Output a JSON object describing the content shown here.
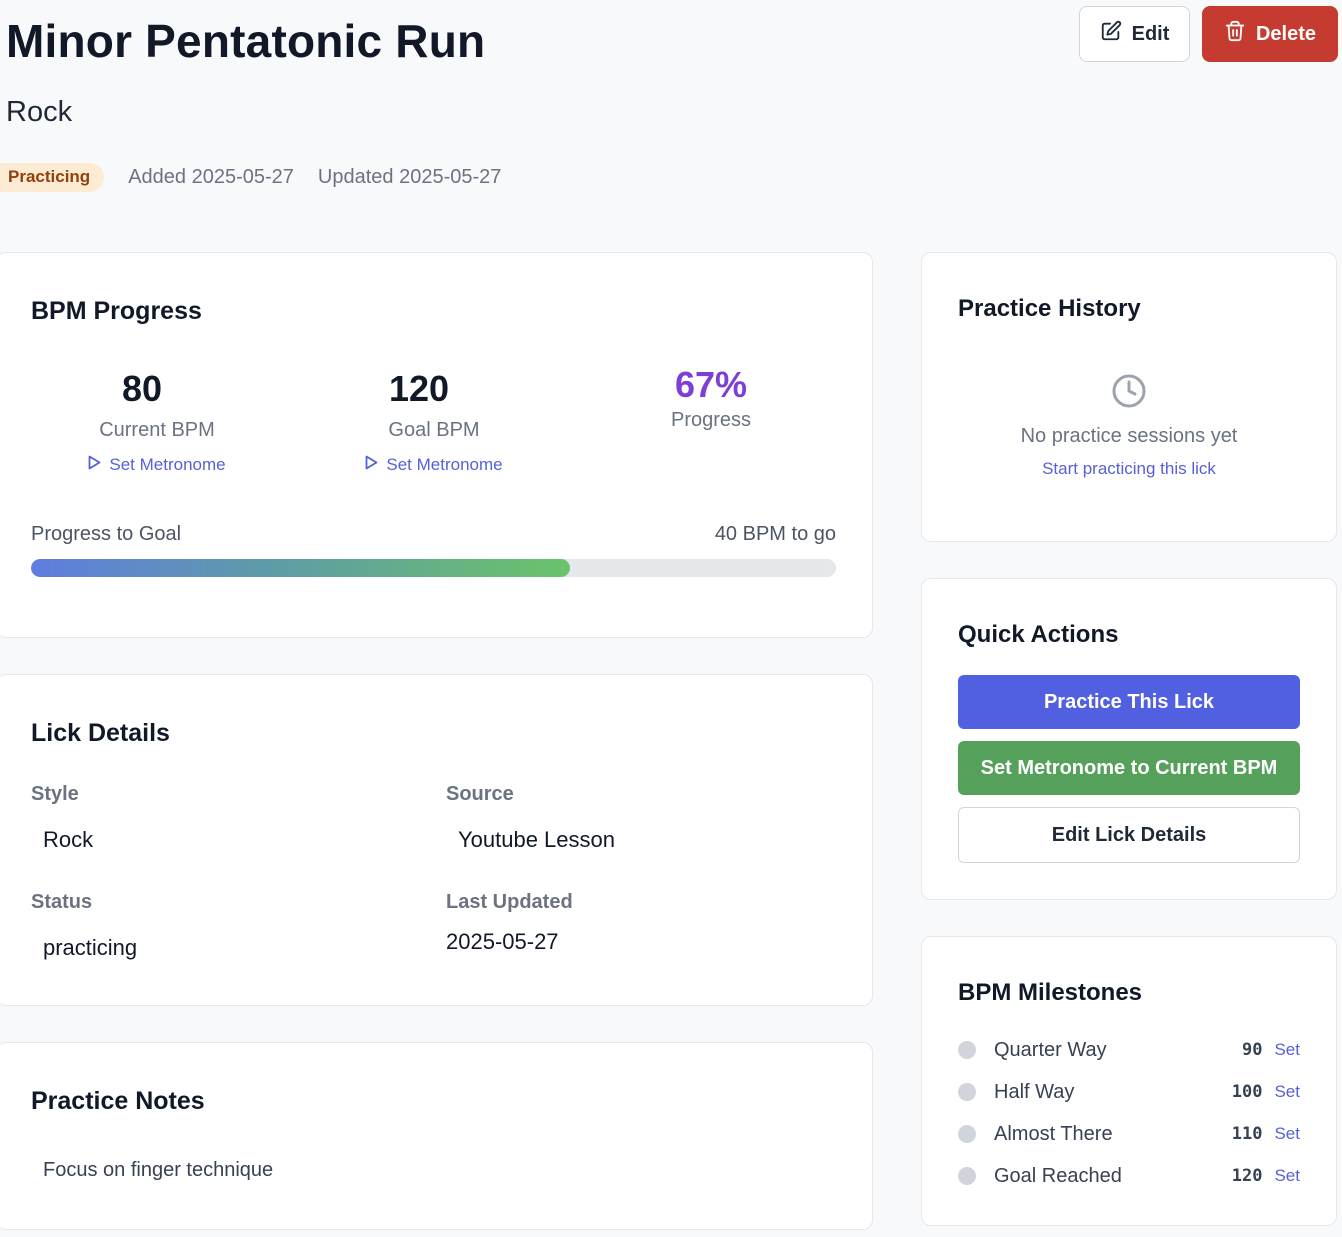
{
  "header": {
    "title": "Minor Pentatonic Run",
    "subtitle": "Rock",
    "status_badge": "Practicing",
    "added": "Added 2025-05-27",
    "updated": "Updated 2025-05-27",
    "edit_label": "Edit",
    "delete_label": "Delete"
  },
  "bpm_progress": {
    "title": "BPM Progress",
    "current_bpm": "80",
    "current_label": "Current BPM",
    "goal_bpm": "120",
    "goal_label": "Goal BPM",
    "set_metronome_label": "Set Metronome",
    "progress_pct": "67%",
    "progress_label": "Progress",
    "progress_to_goal_label": "Progress to Goal",
    "remaining": "40 BPM to go",
    "progress_fraction": 0.67
  },
  "lick_details": {
    "title": "Lick Details",
    "style_label": "Style",
    "style_value": "Rock",
    "source_label": "Source",
    "source_value": "Youtube Lesson",
    "status_label": "Status",
    "status_value": "practicing",
    "last_updated_label": "Last Updated",
    "last_updated_value": "2025-05-27"
  },
  "practice_notes": {
    "title": "Practice Notes",
    "text": "Focus on finger technique"
  },
  "practice_history": {
    "title": "Practice History",
    "empty_text": "No practice sessions yet",
    "empty_link": "Start practicing this lick"
  },
  "quick_actions": {
    "title": "Quick Actions",
    "practice": "Practice This Lick",
    "set_metronome": "Set Metronome to Current BPM",
    "edit": "Edit Lick Details"
  },
  "milestones": {
    "title": "BPM Milestones",
    "items": [
      {
        "name": "Quarter Way",
        "bpm": "90",
        "action": "Set"
      },
      {
        "name": "Half Way",
        "bpm": "100",
        "action": "Set"
      },
      {
        "name": "Almost There",
        "bpm": "110",
        "action": "Set"
      },
      {
        "name": "Goal Reached",
        "bpm": "120",
        "action": "Set"
      }
    ]
  },
  "colors": {
    "accent": "#5060e0",
    "success": "#55a05a",
    "danger": "#c53b30",
    "progress_text": "#7e3fd6",
    "badge_bg": "#fdebd3"
  },
  "icons": {
    "edit": "pencil-square-icon",
    "delete": "trash-icon",
    "metronome": "play-outline-icon",
    "history_empty": "clock-icon",
    "milestone": "circle-dot-icon"
  }
}
